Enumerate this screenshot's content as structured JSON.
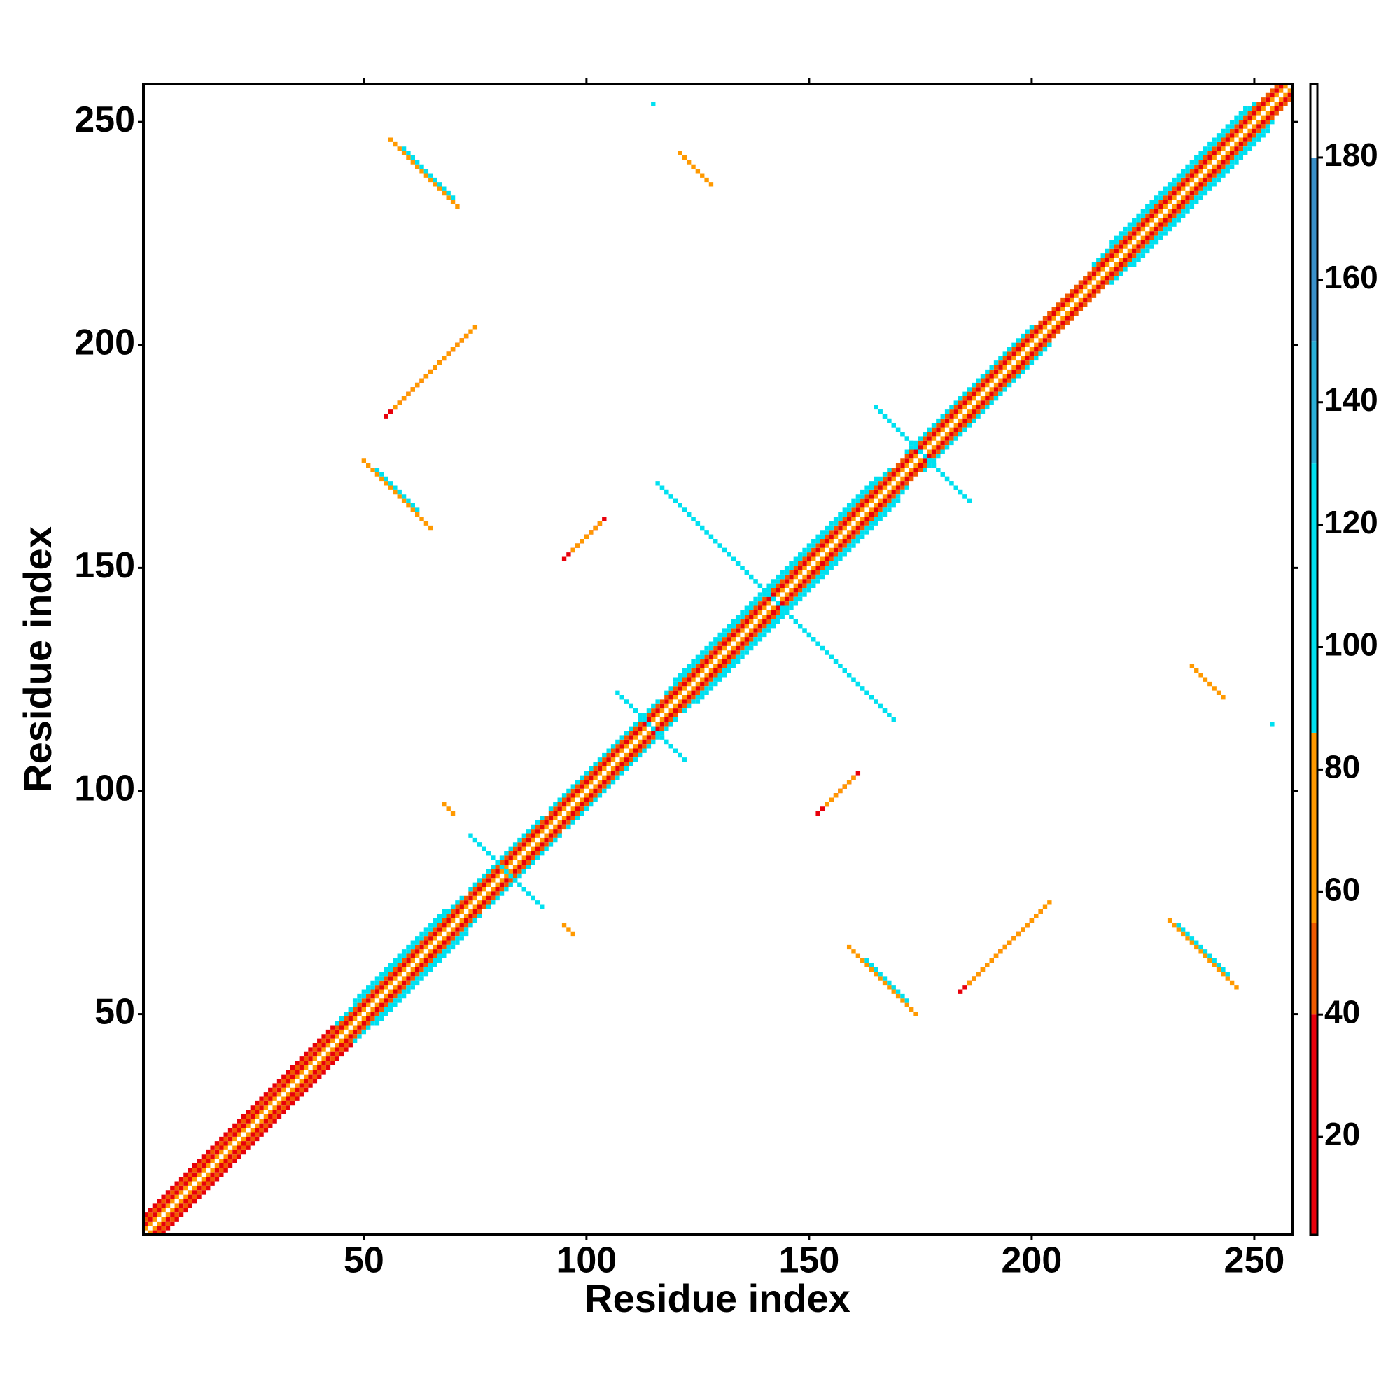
{
  "chart_data": {
    "type": "heatmap",
    "x_label": "Residue index",
    "y_label": "Residue index",
    "xlim": [
      0.5,
      258.5
    ],
    "ylim": [
      0.5,
      258.5
    ],
    "xticks": [
      50,
      100,
      150,
      200,
      250
    ],
    "yticks": [
      50,
      100,
      150,
      200,
      250
    ],
    "symmetric": true,
    "diagonal_bands": [
      {
        "start": 1,
        "end": 257,
        "offset": 1,
        "value": 62
      },
      {
        "start": 1,
        "end": 256,
        "offset": 2,
        "value": 28
      },
      {
        "start": 1,
        "end": 255,
        "offset": 3,
        "value": 48
      },
      {
        "start": 1,
        "end": 43,
        "offset": 4,
        "value": 38
      },
      {
        "start": 44,
        "end": 72,
        "offset": 4,
        "value": 105
      },
      {
        "start": 74,
        "end": 90,
        "offset": 4,
        "value": 105
      },
      {
        "start": 92,
        "end": 116,
        "offset": 4,
        "value": 105
      },
      {
        "start": 118,
        "end": 168,
        "offset": 4,
        "value": 105
      },
      {
        "start": 172,
        "end": 200,
        "offset": 4,
        "value": 105
      },
      {
        "start": 214,
        "end": 250,
        "offset": 4,
        "value": 105
      },
      {
        "start": 48,
        "end": 68,
        "offset": 5,
        "value": 110
      },
      {
        "start": 120,
        "end": 165,
        "offset": 5,
        "value": 110
      },
      {
        "start": 218,
        "end": 248,
        "offset": 5,
        "value": 110
      }
    ],
    "strips": [
      {
        "x0": 56,
        "y0": 246,
        "x1": 71,
        "y1": 231,
        "value": 70
      },
      {
        "x0": 59,
        "y0": 244,
        "x1": 70,
        "y1": 233,
        "value": 110
      },
      {
        "x0": 55,
        "y0": 184,
        "x1": 73,
        "y1": 202,
        "value": 30
      },
      {
        "x0": 57,
        "y0": 186,
        "x1": 75,
        "y1": 204,
        "value": 65
      },
      {
        "x0": 50,
        "y0": 174,
        "x1": 65,
        "y1": 159,
        "value": 72
      },
      {
        "x0": 53,
        "y0": 172,
        "x1": 62,
        "y1": 163,
        "value": 105
      },
      {
        "x0": 95,
        "y0": 152,
        "x1": 104,
        "y1": 161,
        "value": 35
      },
      {
        "x0": 97,
        "y0": 154,
        "x1": 103,
        "y1": 160,
        "value": 68
      },
      {
        "x0": 121,
        "y0": 243,
        "x1": 128,
        "y1": 236,
        "value": 70
      },
      {
        "x0": 115,
        "y0": 254,
        "x1": 115,
        "y1": 254,
        "value": 115
      },
      {
        "x0": 116,
        "y0": 169,
        "x1": 168,
        "y1": 117,
        "value": 110
      },
      {
        "x0": 165,
        "y0": 186,
        "x1": 185,
        "y1": 166,
        "value": 112
      },
      {
        "x0": 108,
        "y0": 121,
        "x1": 122,
        "y1": 107,
        "value": 108
      },
      {
        "x0": 76,
        "y0": 88,
        "x1": 90,
        "y1": 74,
        "value": 108
      },
      {
        "x0": 68,
        "y0": 97,
        "x1": 70,
        "y1": 95,
        "value": 70
      }
    ],
    "colorbar": {
      "lim": [
        4,
        192
      ],
      "ticks": [
        20,
        40,
        60,
        80,
        100,
        120,
        140,
        160,
        180
      ],
      "levels": [
        {
          "from": 4,
          "color": "#e8000b"
        },
        {
          "from": 40,
          "color": "#f05a00"
        },
        {
          "from": 55,
          "color": "#ff9900"
        },
        {
          "from": 86,
          "color": "#00e0f0"
        },
        {
          "from": 130,
          "color": "#2ab0d8"
        },
        {
          "from": 150,
          "color": "#3a90c8"
        },
        {
          "from": 180,
          "color": "#ffffff"
        }
      ]
    }
  }
}
